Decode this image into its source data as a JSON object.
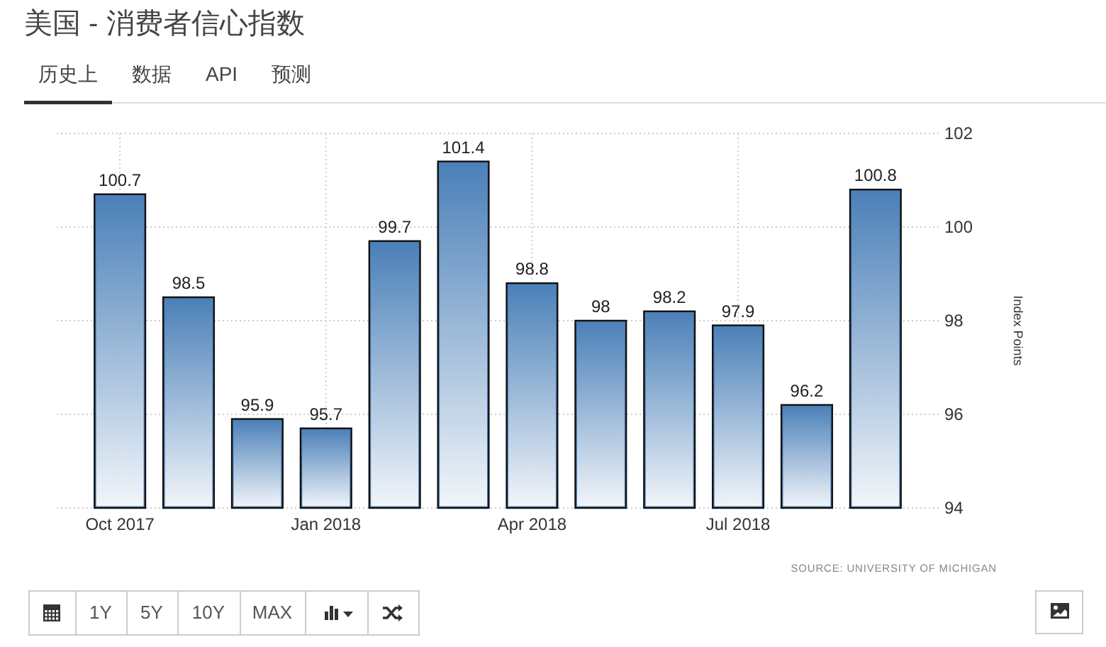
{
  "chart_data": {
    "type": "bar",
    "title": "美国 - 消费者信心指数",
    "categories": [
      "Oct 2017",
      null,
      null,
      "Jan 2018",
      null,
      null,
      "Apr 2018",
      null,
      null,
      "Jul 2018",
      null,
      null
    ],
    "values": [
      100.7,
      98.5,
      95.9,
      95.7,
      99.7,
      101.4,
      98.8,
      98,
      98.2,
      97.9,
      96.2,
      100.8
    ],
    "color": "#4a7fb8",
    "ylim": [
      94,
      102
    ],
    "yticks": [
      94,
      96,
      98,
      100,
      102
    ],
    "ylabel": "Index Points",
    "grid": true,
    "data_labels": true,
    "annotations": [
      "历史上",
      "数据",
      "API",
      "预测",
      "1Y",
      "5Y",
      "10Y",
      "MAX",
      "SOURCE: UNIVERSITY OF MICHIGAN"
    ]
  }
}
